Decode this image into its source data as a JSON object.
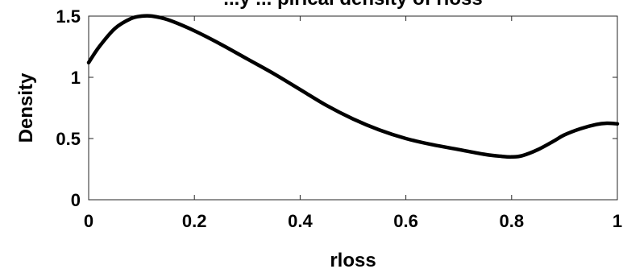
{
  "chart_data": {
    "type": "line",
    "title": "...y ... pirical density of rloss",
    "xlabel": "rloss",
    "ylabel": "Density",
    "xlim": [
      0,
      1
    ],
    "ylim": [
      0,
      1.5
    ],
    "x_ticks": [
      "0",
      "0.2",
      "0.4",
      "0.6",
      "0.8",
      "1"
    ],
    "y_ticks": [
      "0",
      "0.5",
      "1",
      "1.5"
    ],
    "grid": false,
    "series": [
      {
        "x": [
          0,
          0.02,
          0.05,
          0.08,
          0.1,
          0.12,
          0.15,
          0.2,
          0.25,
          0.3,
          0.35,
          0.4,
          0.45,
          0.5,
          0.55,
          0.6,
          0.65,
          0.7,
          0.75,
          0.78,
          0.8,
          0.82,
          0.85,
          0.88,
          0.9,
          0.93,
          0.96,
          0.98,
          1.0
        ],
        "y": [
          1.12,
          1.25,
          1.4,
          1.48,
          1.5,
          1.5,
          1.47,
          1.38,
          1.27,
          1.15,
          1.03,
          0.9,
          0.77,
          0.66,
          0.57,
          0.5,
          0.45,
          0.41,
          0.37,
          0.355,
          0.35,
          0.36,
          0.41,
          0.48,
          0.53,
          0.58,
          0.615,
          0.625,
          0.62
        ],
        "color": "#000000"
      }
    ]
  }
}
